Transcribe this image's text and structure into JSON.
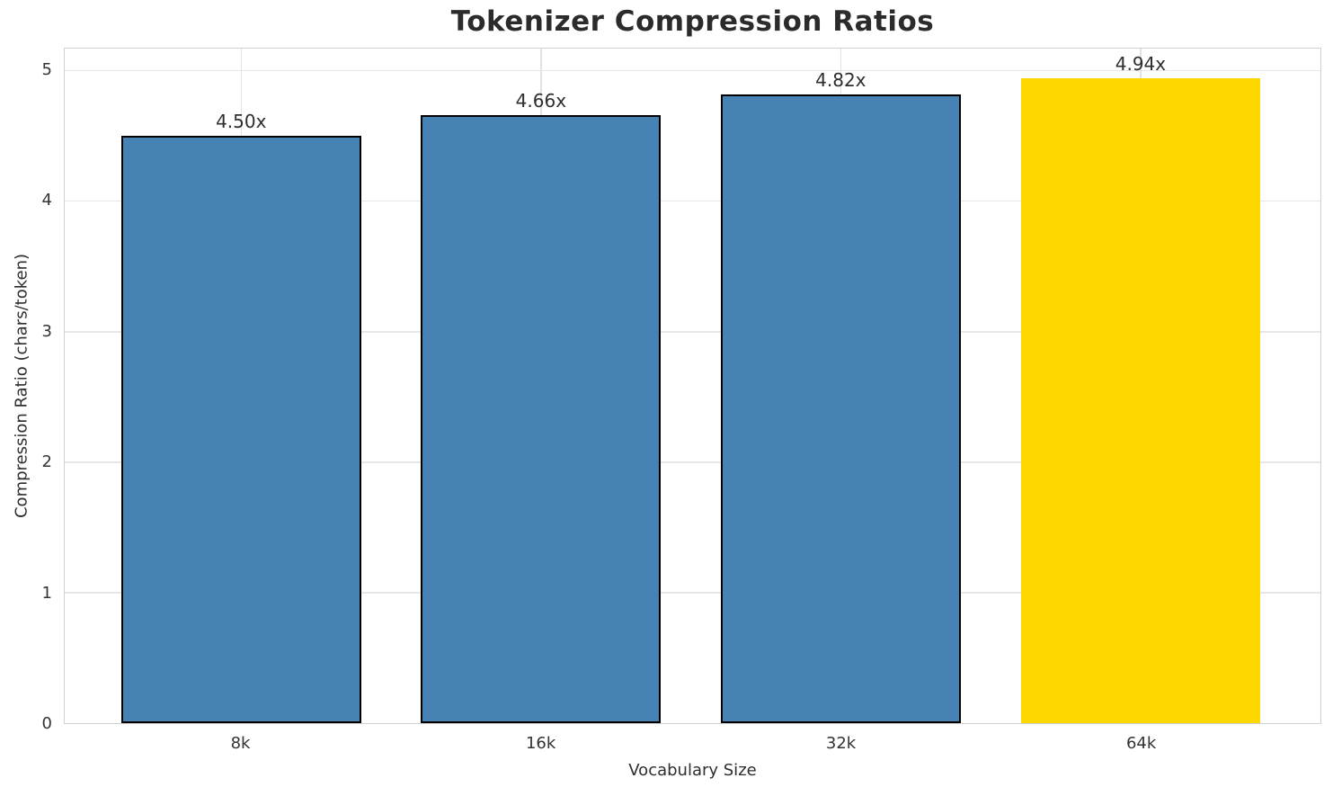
{
  "chart_data": {
    "type": "bar",
    "title": "Tokenizer Compression Ratios",
    "xlabel": "Vocabulary Size",
    "ylabel": "Compression Ratio (chars/token)",
    "categories": [
      "8k",
      "16k",
      "32k",
      "64k"
    ],
    "values": [
      4.5,
      4.66,
      4.82,
      4.94
    ],
    "bar_labels": [
      "4.50x",
      "4.66x",
      "4.82x",
      "4.94x"
    ],
    "bar_colors": [
      "#4682B4",
      "#4682B4",
      "#4682B4",
      "#FFD700"
    ],
    "bar_edge_colors": [
      "#000000",
      "#000000",
      "#000000",
      "none"
    ],
    "highlighted_category": "64k",
    "yticks": [
      0,
      1,
      2,
      3,
      4,
      5
    ],
    "ylim": [
      0,
      5.17
    ],
    "grid": true,
    "legend_position": "none"
  },
  "style": {
    "background": "#ffffff",
    "grid_color": "#e7e7e7",
    "spine_color": "#d0d0d0",
    "title_color": "#2b2b2b",
    "tick_color": "#333333",
    "bar_blue": "#4682B4",
    "bar_gold": "#FFD700"
  }
}
